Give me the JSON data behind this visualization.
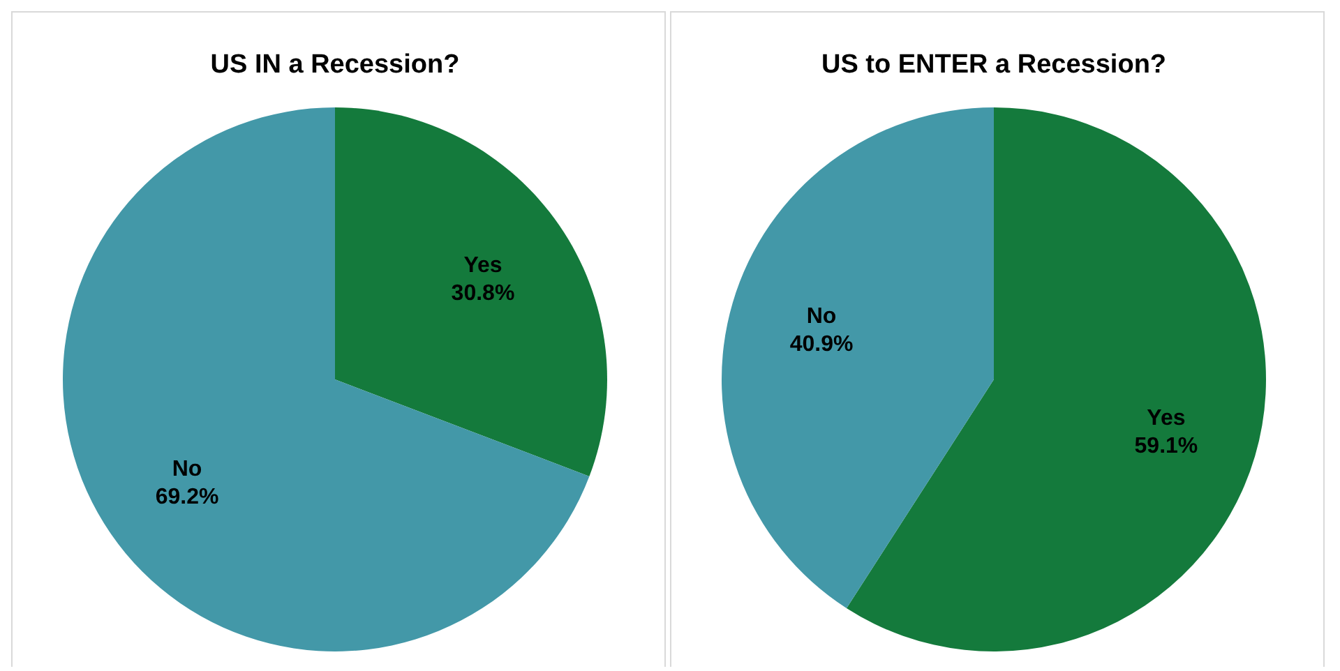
{
  "chart_data": [
    {
      "type": "pie",
      "title": "US IN a Recession?",
      "categories": [
        "Yes",
        "No"
      ],
      "values": [
        30.8,
        69.2
      ],
      "colors": [
        "#147a3c",
        "#4398a8"
      ],
      "value_labels": [
        "30.8%",
        "69.2%"
      ]
    },
    {
      "type": "pie",
      "title": "US to ENTER a Recession?",
      "categories": [
        "Yes",
        "No"
      ],
      "values": [
        59.1,
        40.9
      ],
      "colors": [
        "#147a3c",
        "#4398a8"
      ],
      "value_labels": [
        "59.1%",
        "40.9%"
      ]
    }
  ]
}
